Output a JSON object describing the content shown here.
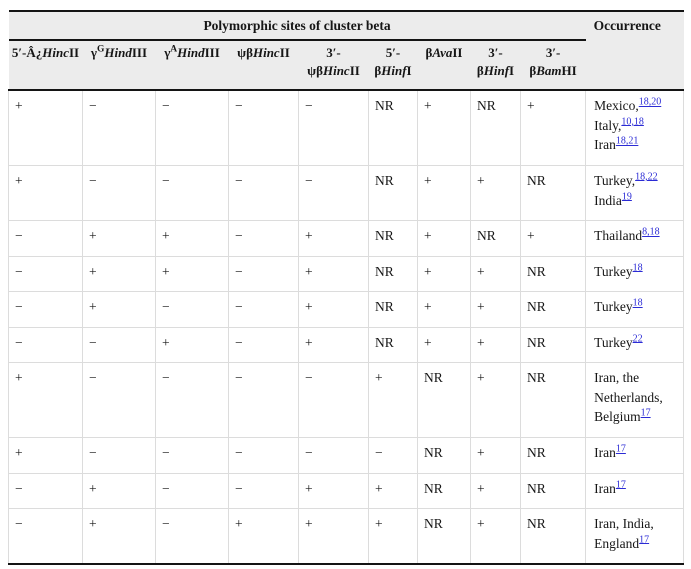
{
  "title": "Polymorphic sites of cluster beta",
  "occurrence_header": "Occurrence",
  "colors": {
    "link": "#2b2bd5",
    "header_bg": "#ececec",
    "rule": "#141414",
    "grid": "#dcdcdc"
  },
  "columns": [
    {
      "id": "hincii-5prime",
      "segments": [
        {
          "t": "5′-"
        },
        {
          "t": "Â¿"
        },
        {
          "t": "Hinc",
          "italic": true
        },
        {
          "t": "II"
        }
      ]
    },
    {
      "id": "gamma-g-hindiii",
      "segments": [
        {
          "t": "γ"
        },
        {
          "t": "G",
          "sup": true
        },
        {
          "t": "Hind",
          "italic": true
        },
        {
          "t": "III"
        }
      ]
    },
    {
      "id": "gamma-a-hindiii",
      "segments": [
        {
          "t": "γ"
        },
        {
          "t": "A",
          "sup": true
        },
        {
          "t": "Hind",
          "italic": true
        },
        {
          "t": "III"
        }
      ]
    },
    {
      "id": "psibeta-hincii",
      "segments": [
        {
          "t": "ψβ"
        },
        {
          "t": "Hinc",
          "italic": true
        },
        {
          "t": "II"
        }
      ]
    },
    {
      "id": "psibeta-hincii-3prime",
      "segments": [
        {
          "t": "3′-"
        },
        {
          "t": "ψβ"
        },
        {
          "t": "Hinc",
          "italic": true
        },
        {
          "t": "II"
        }
      ]
    },
    {
      "id": "beta-hinfi-5prime",
      "segments": [
        {
          "t": "5′-"
        },
        {
          "t": "β"
        },
        {
          "t": "Hinf",
          "italic": true
        },
        {
          "t": "I"
        }
      ]
    },
    {
      "id": "beta-avaii",
      "segments": [
        {
          "t": "β"
        },
        {
          "t": "Ava",
          "italic": true
        },
        {
          "t": "II"
        }
      ]
    },
    {
      "id": "beta-hinfi-3prime",
      "segments": [
        {
          "t": "3′-"
        },
        {
          "t": "β"
        },
        {
          "t": "Hinf",
          "italic": true
        },
        {
          "t": "I"
        }
      ]
    },
    {
      "id": "beta-bamhi-3prime",
      "segments": [
        {
          "t": "3′-"
        },
        {
          "t": "β"
        },
        {
          "t": "Bam",
          "italic": true
        },
        {
          "t": "HI"
        }
      ]
    }
  ],
  "rows": [
    {
      "values": [
        "+",
        "−",
        "−",
        "−",
        "−",
        "NR",
        "+",
        "NR",
        "+"
      ],
      "occurrence": [
        {
          "text": "Mexico,",
          "ref": "18,20"
        },
        {
          "text": "Italy,",
          "ref": "10,18"
        },
        {
          "text": "Iran",
          "ref": "18,21"
        }
      ]
    },
    {
      "values": [
        "+",
        "−",
        "−",
        "−",
        "−",
        "NR",
        "+",
        "+",
        "NR"
      ],
      "occurrence": [
        {
          "text": "Turkey,",
          "ref": "18,22"
        },
        {
          "text": "India",
          "ref": "19"
        }
      ]
    },
    {
      "values": [
        "−",
        "+",
        "+",
        "−",
        "+",
        "NR",
        "+",
        "NR",
        "+"
      ],
      "occurrence": [
        {
          "text": "Thailand",
          "ref": "8,18"
        }
      ]
    },
    {
      "values": [
        "−",
        "+",
        "+",
        "−",
        "+",
        "NR",
        "+",
        "+",
        "NR"
      ],
      "occurrence": [
        {
          "text": "Turkey",
          "ref": "18"
        }
      ]
    },
    {
      "values": [
        "−",
        "+",
        "−",
        "−",
        "+",
        "NR",
        "+",
        "+",
        "NR"
      ],
      "occurrence": [
        {
          "text": "Turkey",
          "ref": "18"
        }
      ]
    },
    {
      "values": [
        "−",
        "−",
        "+",
        "−",
        "+",
        "NR",
        "+",
        "+",
        "NR"
      ],
      "occurrence": [
        {
          "text": "Turkey",
          "ref": "22"
        }
      ]
    },
    {
      "values": [
        "+",
        "−",
        "−",
        "−",
        "−",
        "+",
        "NR",
        "+",
        "NR"
      ],
      "occurrence": [
        {
          "text": "Iran, the Netherlands, Belgium",
          "ref": "17"
        }
      ]
    },
    {
      "values": [
        "+",
        "−",
        "−",
        "−",
        "−",
        "−",
        "NR",
        "+",
        "NR"
      ],
      "occurrence": [
        {
          "text": "Iran",
          "ref": "17"
        }
      ]
    },
    {
      "values": [
        "−",
        "+",
        "−",
        "−",
        "+",
        "+",
        "NR",
        "+",
        "NR"
      ],
      "occurrence": [
        {
          "text": "Iran",
          "ref": "17"
        }
      ]
    },
    {
      "values": [
        "−",
        "+",
        "−",
        "+",
        "+",
        "+",
        "NR",
        "+",
        "NR"
      ],
      "occurrence": [
        {
          "text": "Iran, India, England",
          "ref": "17"
        }
      ]
    }
  ]
}
